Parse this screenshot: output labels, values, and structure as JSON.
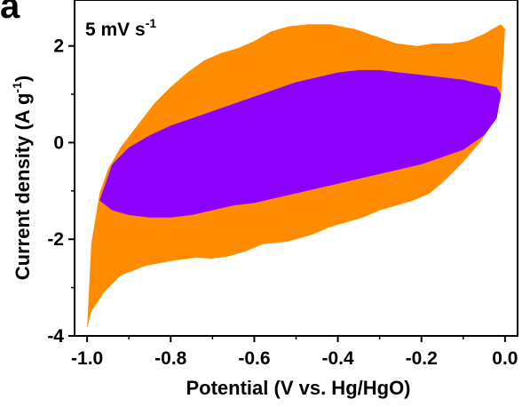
{
  "panel_label": "a",
  "annotation": {
    "text_main": "5 mV s",
    "text_sup": "-1"
  },
  "chart_data": {
    "type": "area",
    "xlabel": "Potential (V vs. Hg/HgO)",
    "ylabel": "Current density (A g",
    "ylabel_sup": "-1",
    "ylabel_end": ")",
    "xlim": [
      -1.03,
      0.03
    ],
    "ylim": [
      -4,
      2.95
    ],
    "xticks": [
      -1.0,
      -0.8,
      -0.6,
      -0.4,
      -0.2,
      0.0
    ],
    "xtick_labels": [
      "-1.0",
      "-0.8",
      "-0.6",
      "-0.4",
      "-0.2",
      "0.0"
    ],
    "yticks": [
      -4,
      -2,
      0,
      2
    ],
    "ytick_labels": [
      "-4",
      "-2",
      "0",
      "2"
    ],
    "series": [
      {
        "color": "#ff8c00",
        "x": [
          -1.0,
          -0.99,
          -0.96,
          -0.92,
          -0.86,
          -0.8,
          -0.74,
          -0.7,
          -0.66,
          -0.62,
          -0.58,
          -0.52,
          -0.46,
          -0.42,
          -0.38,
          -0.34,
          -0.3,
          -0.26,
          -0.22,
          -0.18,
          -0.14,
          -0.1,
          -0.06,
          -0.03,
          -0.01,
          0.0,
          -0.01,
          -0.02,
          -0.05,
          -0.09,
          -0.13,
          -0.17,
          -0.21,
          -0.26,
          -0.31,
          -0.36,
          -0.42,
          -0.47,
          -0.52,
          -0.56,
          -0.6,
          -0.64,
          -0.68,
          -0.72,
          -0.76,
          -0.8,
          -0.84,
          -0.88,
          -0.92,
          -0.95,
          -0.97,
          -0.99,
          -1.0
        ],
        "y": [
          -3.85,
          -3.5,
          -3.1,
          -2.75,
          -2.55,
          -2.45,
          -2.38,
          -2.4,
          -2.35,
          -2.25,
          -2.1,
          -2.05,
          -1.9,
          -1.75,
          -1.65,
          -1.55,
          -1.4,
          -1.3,
          -1.2,
          -1.05,
          -0.75,
          -0.4,
          0.0,
          0.4,
          0.9,
          2.35,
          2.45,
          2.4,
          2.25,
          2.1,
          2.05,
          2.05,
          2.0,
          2.05,
          2.2,
          2.35,
          2.45,
          2.45,
          2.4,
          2.3,
          2.1,
          1.95,
          1.85,
          1.7,
          1.45,
          1.15,
          0.8,
          0.35,
          -0.1,
          -0.55,
          -1.05,
          -2.1,
          -3.85
        ]
      },
      {
        "color": "#8b00ff",
        "x": [
          -0.97,
          -0.94,
          -0.9,
          -0.85,
          -0.8,
          -0.75,
          -0.7,
          -0.65,
          -0.6,
          -0.55,
          -0.5,
          -0.45,
          -0.4,
          -0.35,
          -0.3,
          -0.25,
          -0.2,
          -0.15,
          -0.1,
          -0.05,
          -0.02,
          -0.01,
          -0.02,
          -0.05,
          -0.1,
          -0.15,
          -0.2,
          -0.25,
          -0.3,
          -0.35,
          -0.4,
          -0.45,
          -0.5,
          -0.55,
          -0.6,
          -0.65,
          -0.7,
          -0.75,
          -0.8,
          -0.85,
          -0.9,
          -0.94,
          -0.97
        ],
        "y": [
          -1.2,
          -1.4,
          -1.5,
          -1.55,
          -1.55,
          -1.5,
          -1.4,
          -1.3,
          -1.25,
          -1.15,
          -1.05,
          -0.95,
          -0.85,
          -0.75,
          -0.65,
          -0.55,
          -0.45,
          -0.3,
          -0.15,
          0.15,
          0.5,
          1.0,
          1.15,
          1.2,
          1.3,
          1.35,
          1.4,
          1.45,
          1.5,
          1.5,
          1.45,
          1.35,
          1.25,
          1.1,
          0.95,
          0.8,
          0.65,
          0.5,
          0.35,
          0.15,
          -0.1,
          -0.45,
          -1.2
        ]
      }
    ],
    "legend": "none",
    "grid": false
  }
}
